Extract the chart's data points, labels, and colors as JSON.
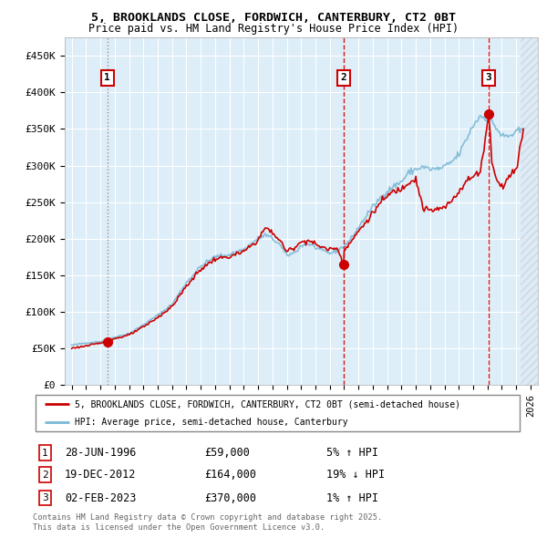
{
  "title_line1": "5, BROOKLANDS CLOSE, FORDWICH, CANTERBURY, CT2 0BT",
  "title_line2": "Price paid vs. HM Land Registry's House Price Index (HPI)",
  "legend_label1": "5, BROOKLANDS CLOSE, FORDWICH, CANTERBURY, CT2 0BT (semi-detached house)",
  "legend_label2": "HPI: Average price, semi-detached house, Canterbury",
  "footer": "Contains HM Land Registry data © Crown copyright and database right 2025.\nThis data is licensed under the Open Government Licence v3.0.",
  "sales": [
    {
      "num": 1,
      "date_dec": 1996.49,
      "price": 59000,
      "label": "28-JUN-1996",
      "pct": "5% ↑ HPI",
      "line_style": "dotted",
      "line_color": "#888888"
    },
    {
      "num": 2,
      "date_dec": 2012.97,
      "price": 164000,
      "label": "19-DEC-2012",
      "pct": "19% ↓ HPI",
      "line_style": "dashed",
      "line_color": "#cc0000"
    },
    {
      "num": 3,
      "date_dec": 2023.09,
      "price": 370000,
      "label": "02-FEB-2023",
      "pct": "1% ↑ HPI",
      "line_style": "dashed",
      "line_color": "#cc0000"
    }
  ],
  "hpi_color": "#7ab8d4",
  "price_color": "#cc0000",
  "sale_marker_color": "#cc0000",
  "sale_box_color": "#cc0000",
  "background_plot": "#ddeef8",
  "background_hatch_color": "#e0eaf5",
  "grid_color": "#ffffff",
  "ylim": [
    0,
    475000
  ],
  "xlim_start": 1993.5,
  "xlim_end": 2026.5,
  "hatch_right_start": 2025.3,
  "ytick_values": [
    0,
    50000,
    100000,
    150000,
    200000,
    250000,
    300000,
    350000,
    400000,
    450000
  ],
  "ytick_labels": [
    "£0",
    "£50K",
    "£100K",
    "£150K",
    "£200K",
    "£250K",
    "£300K",
    "£350K",
    "£400K",
    "£450K"
  ],
  "xtick_years": [
    1994,
    1995,
    1996,
    1997,
    1998,
    1999,
    2000,
    2001,
    2002,
    2003,
    2004,
    2005,
    2006,
    2007,
    2008,
    2009,
    2010,
    2011,
    2012,
    2013,
    2014,
    2015,
    2016,
    2017,
    2018,
    2019,
    2020,
    2021,
    2022,
    2023,
    2024,
    2025,
    2026
  ]
}
